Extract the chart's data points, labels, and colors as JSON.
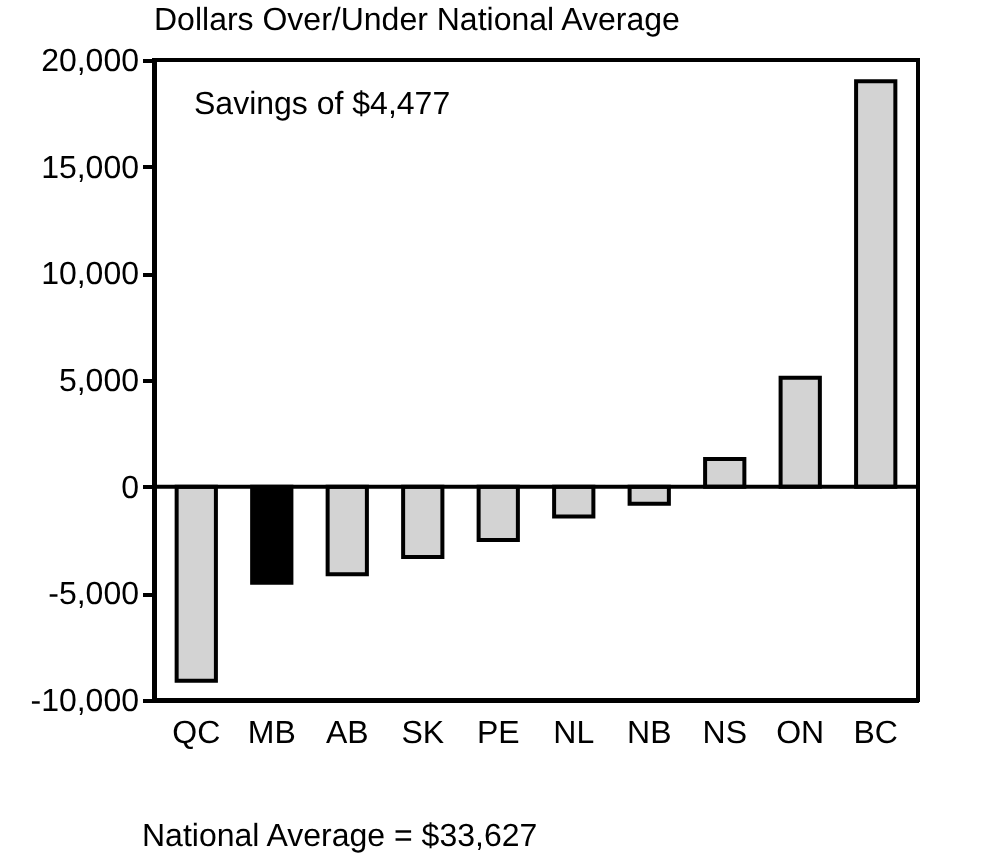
{
  "chart_data": {
    "type": "bar",
    "title": "Dollars Over/Under National Average",
    "categories": [
      "QC",
      "MB",
      "AB",
      "SK",
      "PE",
      "NL",
      "NB",
      "NS",
      "ON",
      "BC"
    ],
    "values": [
      -9100,
      -4500,
      -4100,
      -3300,
      -2500,
      -1400,
      -800,
      1300,
      5100,
      19000
    ],
    "colors": [
      "#d3d3d3",
      "#000000",
      "#d3d3d3",
      "#d3d3d3",
      "#d3d3d3",
      "#d3d3d3",
      "#d3d3d3",
      "#d3d3d3",
      "#d3d3d3",
      "#d3d3d3"
    ],
    "ylim": [
      -10000,
      20000
    ],
    "yticks": [
      {
        "value": -10000,
        "label": "-10,000"
      },
      {
        "value": -5000,
        "label": "-5,000"
      },
      0,
      {
        "value": 5000,
        "label": "5,000"
      },
      {
        "value": 10000,
        "label": "10,000"
      },
      {
        "value": 15000,
        "label": "15,000"
      },
      {
        "value": 20000,
        "label": "20,000"
      }
    ],
    "ref_lines": [
      {
        "axis": "y",
        "value": 0,
        "color": "#000000"
      }
    ],
    "annotations": [
      "Savings of $4,477",
      "National Average = $33,627"
    ]
  }
}
